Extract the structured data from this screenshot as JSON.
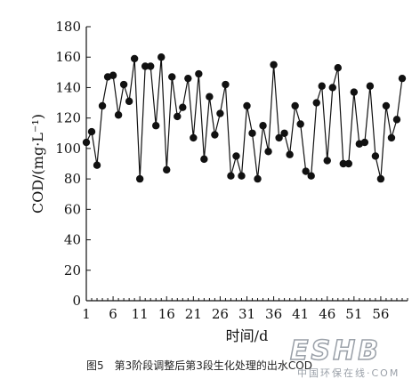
{
  "chart_data": {
    "type": "line",
    "title": "",
    "xlabel": "时间/d",
    "ylabel": "COD/(mg·L⁻¹)",
    "ylim": [
      0,
      180
    ],
    "yticks": [
      0,
      20,
      40,
      60,
      80,
      100,
      120,
      140,
      160,
      180
    ],
    "xticks": [
      1,
      6,
      11,
      16,
      21,
      26,
      31,
      36,
      41,
      46,
      51,
      56
    ],
    "grid": false,
    "legend": "none",
    "marker": "filled-circle",
    "line_color": "#111111",
    "x": [
      1,
      2,
      3,
      4,
      5,
      6,
      7,
      8,
      9,
      10,
      11,
      12,
      13,
      14,
      15,
      16,
      17,
      18,
      19,
      20,
      21,
      22,
      23,
      24,
      25,
      26,
      27,
      28,
      29,
      30,
      31,
      32,
      33,
      34,
      35,
      36,
      37,
      38,
      39,
      40,
      41,
      42,
      43,
      44,
      45,
      46,
      47,
      48,
      49,
      50,
      51,
      52,
      53,
      54,
      55,
      56,
      57,
      58,
      59,
      60
    ],
    "y": [
      104,
      111,
      89,
      128,
      147,
      148,
      122,
      142,
      131,
      159,
      80,
      154,
      154,
      115,
      160,
      86,
      147,
      121,
      127,
      146,
      107,
      149,
      93,
      134,
      109,
      123,
      142,
      82,
      95,
      82,
      128,
      110,
      80,
      115,
      98,
      155,
      107,
      110,
      96,
      128,
      116,
      85,
      82,
      130,
      141,
      92,
      140,
      153,
      90,
      90,
      137,
      103,
      104,
      141,
      95,
      80,
      128,
      107,
      119,
      146
    ]
  },
  "caption": {
    "figure_no": "图5",
    "text": "第3阶段调整后第3段生化处理的出水COD"
  },
  "watermark": {
    "logo": "ESHB",
    "subtitle": "中国环保在线·COM"
  }
}
